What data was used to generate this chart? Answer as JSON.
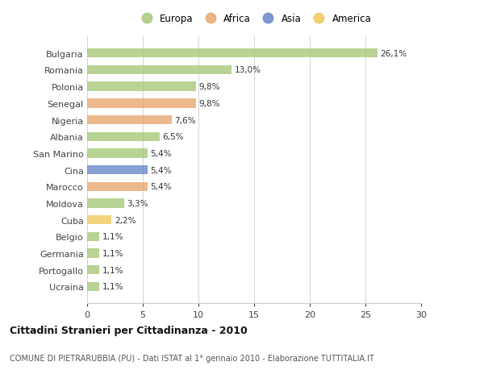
{
  "categories": [
    "Ucraina",
    "Portogallo",
    "Germania",
    "Belgio",
    "Cuba",
    "Moldova",
    "Marocco",
    "Cina",
    "San Marino",
    "Albania",
    "Nigeria",
    "Senegal",
    "Polonia",
    "Romania",
    "Bulgaria"
  ],
  "values": [
    1.1,
    1.1,
    1.1,
    1.1,
    2.2,
    3.3,
    5.4,
    5.4,
    5.4,
    6.5,
    7.6,
    9.8,
    9.8,
    13.0,
    26.1
  ],
  "bar_colors": [
    "#a8c87a",
    "#a8c87a",
    "#a8c87a",
    "#a8c87a",
    "#f0c85a",
    "#a8c87a",
    "#e8a870",
    "#6888c8",
    "#a8c87a",
    "#a8c87a",
    "#e8a870",
    "#e8a870",
    "#a8c87a",
    "#a8c87a",
    "#a8c87a"
  ],
  "labels": [
    "1,1%",
    "1,1%",
    "1,1%",
    "1,1%",
    "2,2%",
    "3,3%",
    "5,4%",
    "5,4%",
    "5,4%",
    "6,5%",
    "7,6%",
    "9,8%",
    "9,8%",
    "13,0%",
    "26,1%"
  ],
  "colors": {
    "Europa": "#a8c87a",
    "Africa": "#e8a870",
    "Asia": "#6888c8",
    "America": "#f0c85a"
  },
  "legend_items": [
    "Europa",
    "Africa",
    "Asia",
    "America"
  ],
  "title": "Cittadini Stranieri per Cittadinanza - 2010",
  "subtitle": "COMUNE DI PIETRARUBBIA (PU) - Dati ISTAT al 1° gennaio 2010 - Elaborazione TUTTITALIA.IT",
  "xlim": [
    0,
    30
  ],
  "xticks": [
    0,
    5,
    10,
    15,
    20,
    25,
    30
  ],
  "background_color": "#ffffff",
  "grid_color": "#cccccc"
}
